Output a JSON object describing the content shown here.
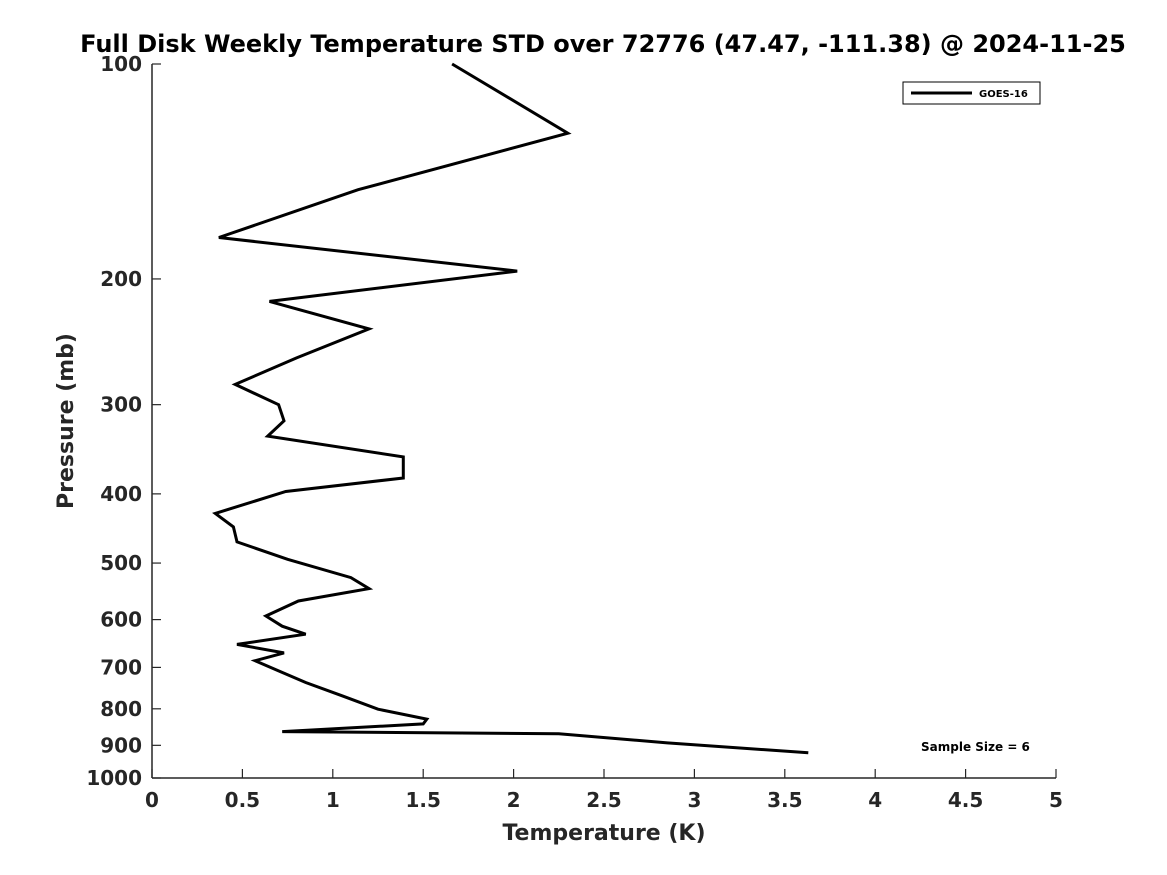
{
  "chart_data": {
    "type": "line",
    "title": "Full Disk Weekly Temperature STD over 72776 (47.47, -111.38) @ 2024-11-25",
    "xlabel": "Temperature (K)",
    "ylabel": "Pressure (mb)",
    "xlim": [
      0,
      5
    ],
    "ylim": [
      100,
      1000
    ],
    "yscale": "log",
    "y_reversed": true,
    "xticks": [
      0,
      0.5,
      1,
      1.5,
      2,
      2.5,
      3,
      3.5,
      4,
      4.5,
      5
    ],
    "xtick_labels": [
      "0",
      "0.5",
      "1",
      "1.5",
      "2",
      "2.5",
      "3",
      "3.5",
      "4",
      "4.5",
      "5"
    ],
    "yticks": [
      100,
      200,
      300,
      400,
      500,
      600,
      700,
      800,
      900,
      1000
    ],
    "ytick_labels": [
      "100",
      "200",
      "300",
      "400",
      "500",
      "600",
      "700",
      "800",
      "900",
      "1000"
    ],
    "grid": false,
    "legend_position": "top-right",
    "series": [
      {
        "name": "GOES-16",
        "color": "#000000",
        "points": [
          {
            "x": 1.66,
            "p": 100
          },
          {
            "x": 2.3,
            "p": 125
          },
          {
            "x": 1.14,
            "p": 150
          },
          {
            "x": 0.37,
            "p": 175
          },
          {
            "x": 2.02,
            "p": 195
          },
          {
            "x": 0.65,
            "p": 215
          },
          {
            "x": 1.2,
            "p": 235
          },
          {
            "x": 0.8,
            "p": 258
          },
          {
            "x": 0.46,
            "p": 281
          },
          {
            "x": 0.7,
            "p": 300
          },
          {
            "x": 0.73,
            "p": 316
          },
          {
            "x": 0.64,
            "p": 332
          },
          {
            "x": 1.39,
            "p": 355
          },
          {
            "x": 1.39,
            "p": 380
          },
          {
            "x": 0.74,
            "p": 397
          },
          {
            "x": 0.35,
            "p": 426
          },
          {
            "x": 0.45,
            "p": 445
          },
          {
            "x": 0.47,
            "p": 467
          },
          {
            "x": 0.75,
            "p": 494
          },
          {
            "x": 1.1,
            "p": 524
          },
          {
            "x": 1.2,
            "p": 543
          },
          {
            "x": 0.81,
            "p": 565
          },
          {
            "x": 0.63,
            "p": 593
          },
          {
            "x": 0.72,
            "p": 613
          },
          {
            "x": 0.85,
            "p": 629
          },
          {
            "x": 0.47,
            "p": 650
          },
          {
            "x": 0.73,
            "p": 668
          },
          {
            "x": 0.57,
            "p": 685
          },
          {
            "x": 0.7,
            "p": 708
          },
          {
            "x": 0.85,
            "p": 735
          },
          {
            "x": 1.05,
            "p": 767
          },
          {
            "x": 1.25,
            "p": 801
          },
          {
            "x": 1.52,
            "p": 827
          },
          {
            "x": 1.5,
            "p": 840
          },
          {
            "x": 0.72,
            "p": 861
          },
          {
            "x": 2.25,
            "p": 867
          },
          {
            "x": 2.85,
            "p": 893
          },
          {
            "x": 3.63,
            "p": 922
          }
        ]
      }
    ],
    "annotations": [
      {
        "text": "Sample Size = 6",
        "position": "bottom-right"
      }
    ]
  }
}
